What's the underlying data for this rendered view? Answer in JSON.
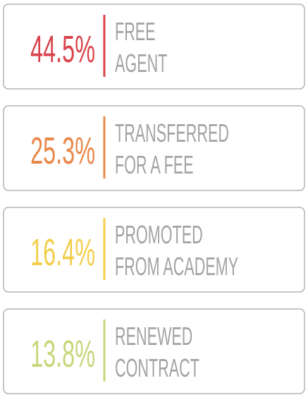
{
  "cards": [
    {
      "value": "44.5%",
      "color": "#d9434b",
      "lines": [
        "FREE",
        "AGENT"
      ]
    },
    {
      "value": "25.3%",
      "color": "#e8884a",
      "lines": [
        "TRANSFERRED",
        "FOR A FEE"
      ]
    },
    {
      "value": "16.4%",
      "color": "#f2cf4a",
      "lines": [
        "PROMOTED",
        "FROM ACADEMY"
      ]
    },
    {
      "value": "13.8%",
      "color": "#c8d67a",
      "lines": [
        "RENEWED",
        "CONTRACT"
      ]
    }
  ]
}
